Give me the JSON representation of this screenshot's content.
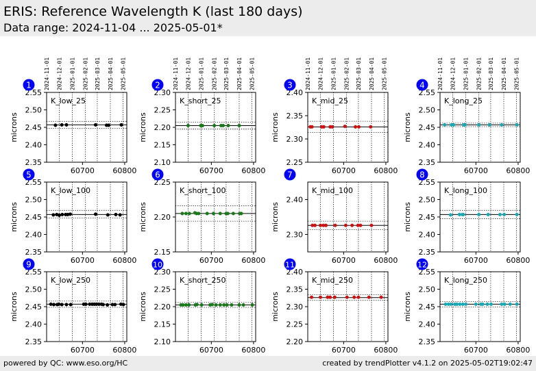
{
  "header": {
    "title": "ERIS: Reference Wavelength K (last 180 days)",
    "subtitle": "Data range: 2024-11-04 ... 2025-05-01*"
  },
  "footer": {
    "left": "powered by QC: www.eso.org/HC",
    "right": "created by trendPlotter v4.1.2 on 2025-05-02T19:02:47"
  },
  "colors": {
    "black": "#000000",
    "green": "#1a7a1a",
    "red": "#cc1111",
    "cyan": "#1aa9b4",
    "badge": "#0000ff"
  },
  "chart_data": {
    "type": "scatter",
    "xlim": [
      60615,
      60805
    ],
    "date_ticks": [
      {
        "label": "2024-11-01",
        "x": 60615
      },
      {
        "label": "2024-12-01",
        "x": 60645
      },
      {
        "label": "2025-01-01",
        "x": 60676
      },
      {
        "label": "2025-02-01",
        "x": 60707
      },
      {
        "label": "2025-03-01",
        "x": 60735
      },
      {
        "label": "2025-04-01",
        "x": 60766
      },
      {
        "label": "2025-05-01",
        "x": 60796
      }
    ],
    "x_ticks": [
      60700,
      60800
    ],
    "ylabel": "microns",
    "panels": [
      {
        "id": "1",
        "label": "K_low_25",
        "color": "black",
        "ylim": [
          2.35,
          2.55
        ],
        "yticks": [
          2.35,
          2.4,
          2.45,
          2.5,
          2.55
        ],
        "ref": 2.457,
        "upper": 2.467,
        "lower": 2.447,
        "points": [
          [
            60636,
            2.456
          ],
          [
            60651,
            2.457
          ],
          [
            60662,
            2.457
          ],
          [
            60731,
            2.457
          ],
          [
            60757,
            2.456
          ],
          [
            60762,
            2.456
          ],
          [
            60792,
            2.457
          ]
        ]
      },
      {
        "id": "2",
        "label": "K_short_25",
        "color": "green",
        "ylim": [
          2.1,
          2.3
        ],
        "yticks": [
          2.1,
          2.15,
          2.2,
          2.25,
          2.3
        ],
        "ref": 2.205,
        "upper": 2.215,
        "lower": 2.195,
        "points": [
          [
            60645,
            2.205
          ],
          [
            60675,
            2.205
          ],
          [
            60679,
            2.205
          ],
          [
            60707,
            2.205
          ],
          [
            60723,
            2.205
          ],
          [
            60728,
            2.205
          ],
          [
            60740,
            2.205
          ],
          [
            60766,
            2.205
          ]
        ]
      },
      {
        "id": "3",
        "label": "K_mid_25",
        "color": "red",
        "ylim": [
          2.25,
          2.4
        ],
        "yticks": [
          2.25,
          2.3,
          2.35,
          2.4
        ],
        "ref": 2.326,
        "upper": 2.338,
        "lower": 2.314,
        "points": [
          [
            60621,
            2.326
          ],
          [
            60625,
            2.326
          ],
          [
            60648,
            2.326
          ],
          [
            60653,
            2.326
          ],
          [
            60668,
            2.326
          ],
          [
            60673,
            2.326
          ],
          [
            60703,
            2.327
          ],
          [
            60728,
            2.326
          ],
          [
            60736,
            2.326
          ],
          [
            60764,
            2.326
          ]
        ]
      },
      {
        "id": "4",
        "label": "K_long_25",
        "color": "cyan",
        "ylim": [
          2.35,
          2.55
        ],
        "yticks": [
          2.35,
          2.4,
          2.45,
          2.5,
          2.55
        ],
        "ref": 2.457,
        "upper": 2.462,
        "lower": 2.452,
        "points": [
          [
            60626,
            2.457
          ],
          [
            60642,
            2.457
          ],
          [
            60647,
            2.457
          ],
          [
            60671,
            2.457
          ],
          [
            60674,
            2.457
          ],
          [
            60707,
            2.457
          ],
          [
            60732,
            2.457
          ],
          [
            60761,
            2.457
          ],
          [
            60797,
            2.457
          ]
        ]
      },
      {
        "id": "5",
        "label": "K_low_100",
        "color": "black",
        "ylim": [
          2.35,
          2.55
        ],
        "yticks": [
          2.35,
          2.4,
          2.45,
          2.5,
          2.55
        ],
        "ref": 2.457,
        "upper": 2.469,
        "lower": 2.447,
        "points": [
          [
            60631,
            2.456
          ],
          [
            60639,
            2.457
          ],
          [
            60645,
            2.455
          ],
          [
            60652,
            2.457
          ],
          [
            60660,
            2.457
          ],
          [
            60665,
            2.457
          ],
          [
            60671,
            2.458
          ],
          [
            60731,
            2.458
          ],
          [
            60760,
            2.456
          ],
          [
            60779,
            2.457
          ],
          [
            60789,
            2.456
          ]
        ]
      },
      {
        "id": "6",
        "label": "K_short_100",
        "color": "green",
        "ylim": [
          2.15,
          2.25
        ],
        "yticks": [
          2.15,
          2.2,
          2.25
        ],
        "ref": 2.205,
        "upper": 2.216,
        "lower": 2.194,
        "points": [
          [
            60631,
            2.205
          ],
          [
            60640,
            2.205
          ],
          [
            60648,
            2.205
          ],
          [
            60661,
            2.206
          ],
          [
            60665,
            2.205
          ],
          [
            60670,
            2.205
          ],
          [
            60690,
            2.205
          ],
          [
            60705,
            2.205
          ],
          [
            60721,
            2.205
          ],
          [
            60735,
            2.205
          ],
          [
            60739,
            2.205
          ],
          [
            60752,
            2.205
          ],
          [
            60767,
            2.205
          ],
          [
            60771,
            2.205
          ]
        ]
      },
      {
        "id": "7",
        "label": "K_mid_100",
        "color": "red",
        "ylim": [
          2.25,
          2.45
        ],
        "yticks": [
          2.3,
          2.4
        ],
        "ref": 2.326,
        "upper": 2.338,
        "lower": 2.314,
        "points": [
          [
            60626,
            2.326
          ],
          [
            60632,
            2.326
          ],
          [
            60645,
            2.326
          ],
          [
            60652,
            2.326
          ],
          [
            60658,
            2.326
          ],
          [
            60680,
            2.326
          ],
          [
            60705,
            2.326
          ],
          [
            60720,
            2.326
          ],
          [
            60734,
            2.326
          ],
          [
            60740,
            2.326
          ],
          [
            60766,
            2.326
          ]
        ]
      },
      {
        "id": "8",
        "label": "K_long_100",
        "color": "cyan",
        "ylim": [
          2.35,
          2.55
        ],
        "yticks": [
          2.35,
          2.4,
          2.45,
          2.5,
          2.55
        ],
        "ref": 2.457,
        "upper": 2.469,
        "lower": 2.445,
        "points": [
          [
            60640,
            2.456
          ],
          [
            60661,
            2.457
          ],
          [
            60668,
            2.457
          ],
          [
            60670,
            2.457
          ],
          [
            60707,
            2.457
          ],
          [
            60729,
            2.457
          ],
          [
            60757,
            2.457
          ],
          [
            60767,
            2.457
          ],
          [
            60797,
            2.457
          ]
        ]
      },
      {
        "id": "9",
        "label": "K_low_250",
        "color": "black",
        "ylim": [
          2.35,
          2.55
        ],
        "yticks": [
          2.35,
          2.4,
          2.45,
          2.5,
          2.55
        ],
        "ref": 2.457,
        "upper": 2.466,
        "lower": 2.448,
        "points": [
          [
            60625,
            2.457
          ],
          [
            60632,
            2.456
          ],
          [
            60640,
            2.456
          ],
          [
            60644,
            2.457
          ],
          [
            60651,
            2.456
          ],
          [
            60662,
            2.456
          ],
          [
            60672,
            2.456
          ],
          [
            60703,
            2.457
          ],
          [
            60708,
            2.457
          ],
          [
            60717,
            2.457
          ],
          [
            60723,
            2.457
          ],
          [
            60728,
            2.457
          ],
          [
            60733,
            2.457
          ],
          [
            60739,
            2.457
          ],
          [
            60745,
            2.457
          ],
          [
            60749,
            2.456
          ],
          [
            60759,
            2.455
          ],
          [
            60771,
            2.456
          ],
          [
            60777,
            2.456
          ],
          [
            60791,
            2.457
          ],
          [
            60797,
            2.456
          ]
        ]
      },
      {
        "id": "10",
        "label": "K_short_250",
        "color": "green",
        "ylim": [
          2.1,
          2.3
        ],
        "yticks": [
          2.1,
          2.15,
          2.2,
          2.25,
          2.3
        ],
        "ref": 2.205,
        "upper": 2.212,
        "lower": 2.198,
        "points": [
          [
            60628,
            2.205
          ],
          [
            60633,
            2.205
          ],
          [
            60640,
            2.205
          ],
          [
            60647,
            2.205
          ],
          [
            60662,
            2.205
          ],
          [
            60666,
            2.206
          ],
          [
            60677,
            2.205
          ],
          [
            60697,
            2.205
          ],
          [
            60702,
            2.206
          ],
          [
            60711,
            2.205
          ],
          [
            60721,
            2.205
          ],
          [
            60730,
            2.205
          ],
          [
            60737,
            2.205
          ],
          [
            60748,
            2.205
          ],
          [
            60766,
            2.205
          ],
          [
            60776,
            2.205
          ],
          [
            60797,
            2.205
          ]
        ]
      },
      {
        "id": "11",
        "label": "K_mid_250",
        "color": "red",
        "ylim": [
          2.2,
          2.4
        ],
        "yticks": [
          2.2,
          2.25,
          2.3,
          2.35,
          2.4
        ],
        "ref": 2.326,
        "upper": 2.334,
        "lower": 2.318,
        "points": [
          [
            60624,
            2.327
          ],
          [
            60645,
            2.327
          ],
          [
            60662,
            2.327
          ],
          [
            60668,
            2.327
          ],
          [
            60679,
            2.327
          ],
          [
            60708,
            2.327
          ],
          [
            60725,
            2.327
          ],
          [
            60735,
            2.327
          ],
          [
            60760,
            2.327
          ],
          [
            60789,
            2.327
          ]
        ]
      },
      {
        "id": "12",
        "label": "K_long_250",
        "color": "cyan",
        "ylim": [
          2.35,
          2.55
        ],
        "yticks": [
          2.35,
          2.4,
          2.45,
          2.5,
          2.55
        ],
        "ref": 2.457,
        "upper": 2.465,
        "lower": 2.449,
        "points": [
          [
            60628,
            2.457
          ],
          [
            60635,
            2.457
          ],
          [
            60641,
            2.457
          ],
          [
            60650,
            2.457
          ],
          [
            60655,
            2.457
          ],
          [
            60662,
            2.457
          ],
          [
            60669,
            2.457
          ],
          [
            60676,
            2.457
          ],
          [
            60700,
            2.457
          ],
          [
            60712,
            2.457
          ],
          [
            60716,
            2.457
          ],
          [
            60727,
            2.457
          ],
          [
            60736,
            2.457
          ],
          [
            60761,
            2.457
          ],
          [
            60768,
            2.457
          ],
          [
            60781,
            2.457
          ],
          [
            60797,
            2.457
          ]
        ]
      }
    ]
  }
}
